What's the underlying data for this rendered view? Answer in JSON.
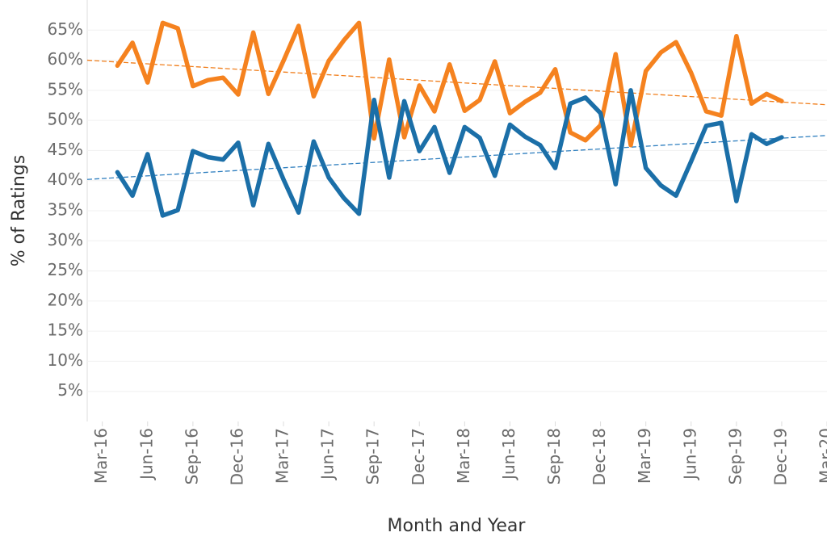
{
  "chart_data": {
    "type": "line",
    "y_label": "% of Ratings",
    "x_label": "Month and Year",
    "x": [
      "2016-04",
      "2016-05",
      "2016-06",
      "2016-07",
      "2016-08",
      "2016-09",
      "2016-10",
      "2016-11",
      "2016-12",
      "2017-01",
      "2017-02",
      "2017-03",
      "2017-04",
      "2017-05",
      "2017-06",
      "2017-07",
      "2017-08",
      "2017-09",
      "2017-10",
      "2017-11",
      "2017-12",
      "2018-01",
      "2018-02",
      "2018-03",
      "2018-04",
      "2018-05",
      "2018-06",
      "2018-07",
      "2018-08",
      "2018-09",
      "2018-10",
      "2018-11",
      "2018-12",
      "2019-01",
      "2019-02",
      "2019-03",
      "2019-04",
      "2019-05",
      "2019-06",
      "2019-07",
      "2019-08",
      "2019-09",
      "2019-10",
      "2019-11",
      "2019-12"
    ],
    "series": [
      {
        "color": "#f5821f",
        "trend_color": "#f07d1a",
        "values": [
          59.1,
          62.9,
          56.3,
          66.2,
          65.3,
          55.7,
          56.7,
          57.1,
          54.3,
          64.6,
          54.4,
          59.9,
          65.7,
          54.0,
          59.9,
          63.3,
          66.2,
          47.0,
          60.1,
          47.2,
          55.8,
          51.5,
          59.3,
          51.6,
          53.4,
          59.8,
          51.2,
          53.1,
          54.6,
          58.5,
          48.0,
          46.7,
          49.2,
          61.0,
          45.9,
          58.2,
          61.3,
          63.0,
          57.9,
          51.5,
          50.8,
          64.0,
          52.8,
          54.4,
          53.2
        ],
        "trend": [
          60.0,
          52.6
        ]
      },
      {
        "color": "#1b6fa8",
        "trend_color": "#2f7fbf",
        "values": [
          41.4,
          37.5,
          44.4,
          34.2,
          35.1,
          44.9,
          43.9,
          43.5,
          46.3,
          35.9,
          46.1,
          40.2,
          34.7,
          46.5,
          40.5,
          37.1,
          34.5,
          53.4,
          40.5,
          53.2,
          44.9,
          48.9,
          41.3,
          48.9,
          47.1,
          40.8,
          49.3,
          47.3,
          45.9,
          42.1,
          52.8,
          53.8,
          51.2,
          39.4,
          55.0,
          42.1,
          39.2,
          37.5,
          43.2,
          49.1,
          49.6,
          36.6,
          47.7,
          46.1,
          47.2
        ],
        "trend": [
          40.2,
          47.5
        ]
      }
    ],
    "xlim": [
      "2016-02",
      "2020-03"
    ],
    "xticks": [
      {
        "value": "2016-03",
        "label": "Mar-16"
      },
      {
        "value": "2016-06",
        "label": "Jun-16"
      },
      {
        "value": "2016-09",
        "label": "Sep-16"
      },
      {
        "value": "2016-12",
        "label": "Dec-16"
      },
      {
        "value": "2017-03",
        "label": "Mar-17"
      },
      {
        "value": "2017-06",
        "label": "Jun-17"
      },
      {
        "value": "2017-09",
        "label": "Sep-17"
      },
      {
        "value": "2017-12",
        "label": "Dec-17"
      },
      {
        "value": "2018-03",
        "label": "Mar-18"
      },
      {
        "value": "2018-06",
        "label": "Jun-18"
      },
      {
        "value": "2018-09",
        "label": "Sep-18"
      },
      {
        "value": "2018-12",
        "label": "Dec-18"
      },
      {
        "value": "2019-03",
        "label": "Mar-19"
      },
      {
        "value": "2019-06",
        "label": "Jun-19"
      },
      {
        "value": "2019-09",
        "label": "Sep-19"
      },
      {
        "value": "2019-12",
        "label": "Dec-19"
      },
      {
        "value": "2020-03",
        "label": "Mar-20"
      }
    ],
    "ylim": [
      0,
      70
    ],
    "yticks": [
      {
        "value": 5,
        "label": "5%"
      },
      {
        "value": 10,
        "label": "10%"
      },
      {
        "value": 15,
        "label": "15%"
      },
      {
        "value": 20,
        "label": "20%"
      },
      {
        "value": 25,
        "label": "25%"
      },
      {
        "value": 30,
        "label": "30%"
      },
      {
        "value": 35,
        "label": "35%"
      },
      {
        "value": 40,
        "label": "40%"
      },
      {
        "value": 45,
        "label": "45%"
      },
      {
        "value": 50,
        "label": "50%"
      },
      {
        "value": 55,
        "label": "55%"
      },
      {
        "value": 60,
        "label": "60%"
      },
      {
        "value": 65,
        "label": "65%"
      }
    ],
    "grid": true
  }
}
